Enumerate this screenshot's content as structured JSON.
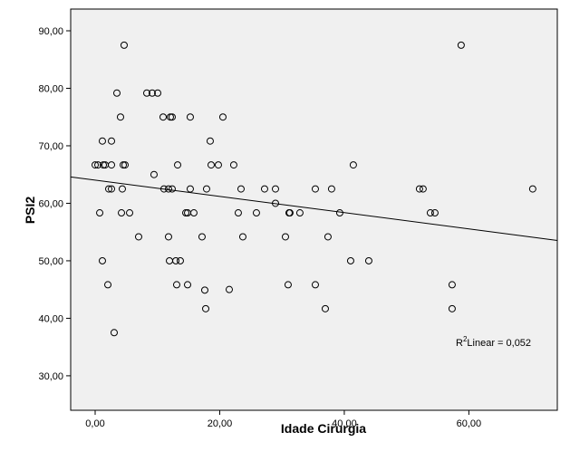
{
  "chart_data": {
    "type": "scatter",
    "x_label": "Idade Cirurgia",
    "y_label": "PSI2",
    "xlim": [
      -3.93,
      74.2
    ],
    "ylim": [
      24.0,
      93.78
    ],
    "xticks": [
      {
        "value": 0,
        "label": "0,00"
      },
      {
        "value": 20,
        "label": "20,00"
      },
      {
        "value": 40,
        "label": "40,00"
      },
      {
        "value": 60,
        "label": "60,00"
      }
    ],
    "yticks": [
      {
        "value": 30,
        "label": "30,00"
      },
      {
        "value": 40,
        "label": "40,00"
      },
      {
        "value": 50,
        "label": "50,00"
      },
      {
        "value": 60,
        "label": "60,00"
      },
      {
        "value": 70,
        "label": "70,00"
      },
      {
        "value": 80,
        "label": "80,00"
      },
      {
        "value": 90,
        "label": "90,00"
      }
    ],
    "x": [
      0,
      0.44,
      0.73,
      1.16,
      1.16,
      1.31,
      1.6,
      2.04,
      2.18,
      2.62,
      2.62,
      2.62,
      3.05,
      3.49,
      4.07,
      4.22,
      4.36,
      4.51,
      4.8,
      4.65,
      5.53,
      6.98,
      8.29,
      9.16,
      10.04,
      9.45,
      10.91,
      11.05,
      11.78,
      11.78,
      11.93,
      12.07,
      12.36,
      12.36,
      12.95,
      13.09,
      13.24,
      13.67,
      14.55,
      14.84,
      14.84,
      15.27,
      15.27,
      15.85,
      17.16,
      17.6,
      17.75,
      17.89,
      18.47,
      18.62,
      19.78,
      20.51,
      21.53,
      22.25,
      22.98,
      23.42,
      23.71,
      25.89,
      27.2,
      28.95,
      28.95,
      30.55,
      30.98,
      31.13,
      31.27,
      32.87,
      35.35,
      35.35,
      36.95,
      37.38,
      37.96,
      39.27,
      41.02,
      41.45,
      43.93,
      52.07,
      52.65,
      53.82,
      54.55,
      57.31,
      57.31,
      58.76,
      70.25
    ],
    "values": [
      66.67,
      66.67,
      58.33,
      70.83,
      50,
      66.67,
      66.67,
      45.83,
      62.5,
      70.83,
      66.67,
      62.5,
      37.5,
      79.17,
      75,
      58.33,
      62.5,
      66.67,
      66.67,
      87.5,
      58.33,
      54.17,
      79.17,
      79.17,
      79.17,
      65,
      75,
      62.5,
      62.5,
      54.17,
      50,
      75,
      75,
      62.5,
      50,
      45.83,
      66.67,
      50,
      58.33,
      58.33,
      45.83,
      62.5,
      75,
      58.33,
      54.17,
      44.9,
      41.67,
      62.5,
      70.83,
      66.67,
      66.67,
      75,
      45,
      66.67,
      58.33,
      62.5,
      54.17,
      58.33,
      62.5,
      62.5,
      60,
      54.17,
      45.83,
      58.33,
      58.33,
      58.33,
      62.5,
      45.83,
      41.67,
      54.17,
      62.5,
      58.33,
      50,
      66.67,
      50,
      62.5,
      62.5,
      58.33,
      58.33,
      45.83,
      41.67,
      87.5,
      62.5
    ],
    "fit": {
      "intercept": 64.02,
      "slope": -0.1412
    },
    "annotation": {
      "r": "R",
      "sup": "2",
      "text": "Linear = 0,052"
    }
  }
}
